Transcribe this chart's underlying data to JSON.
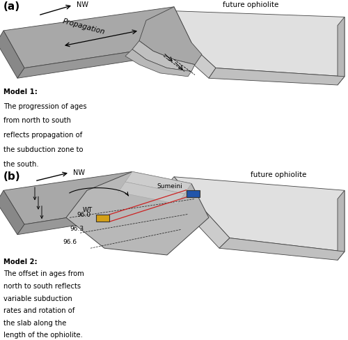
{
  "panel_a": {
    "label": "(a)",
    "nw_arrow_text": "NW",
    "future_ophiolite_text": "future ophiolite",
    "propagation_text": "Propagation",
    "model_title": "Model 1:",
    "model_text_line1": "The progression of ages",
    "model_text_line2": "from north to south",
    "model_text_line3": "reflects propagation of",
    "model_text_line4": "the subduction zone to",
    "model_text_line5": "the south."
  },
  "panel_b": {
    "label": "(b)",
    "nw_arrow_text": "NW",
    "future_ophiolite_text": "future ophiolite",
    "sumeini_text": "Sumeini",
    "wt_text": "WT",
    "model_title": "Model 2:",
    "model_text_line1": "The offset in ages from",
    "model_text_line2": "north to south reflects",
    "model_text_line3": "variable subduction",
    "model_text_line4": "rates and rotation of",
    "model_text_line5": "the slab along the",
    "model_text_line6": "length of the ophiolite.",
    "age_labels": [
      "96.0",
      "96.3",
      "96.6"
    ],
    "yellow_box_color": "#d4a017",
    "blue_box_color": "#2255aa",
    "red_line_color": "#cc2222"
  },
  "slab_top_color": "#a8a8a8",
  "slab_front_color": "#888888",
  "slab_side_color": "#909090",
  "slab_edge_color": "#444444",
  "oph_top_color": "#e0e0e0",
  "oph_front_color": "#cccccc",
  "oph_side_color": "#d0d0d0",
  "oph_edge_color": "#444444",
  "bg_color": "#ffffff"
}
